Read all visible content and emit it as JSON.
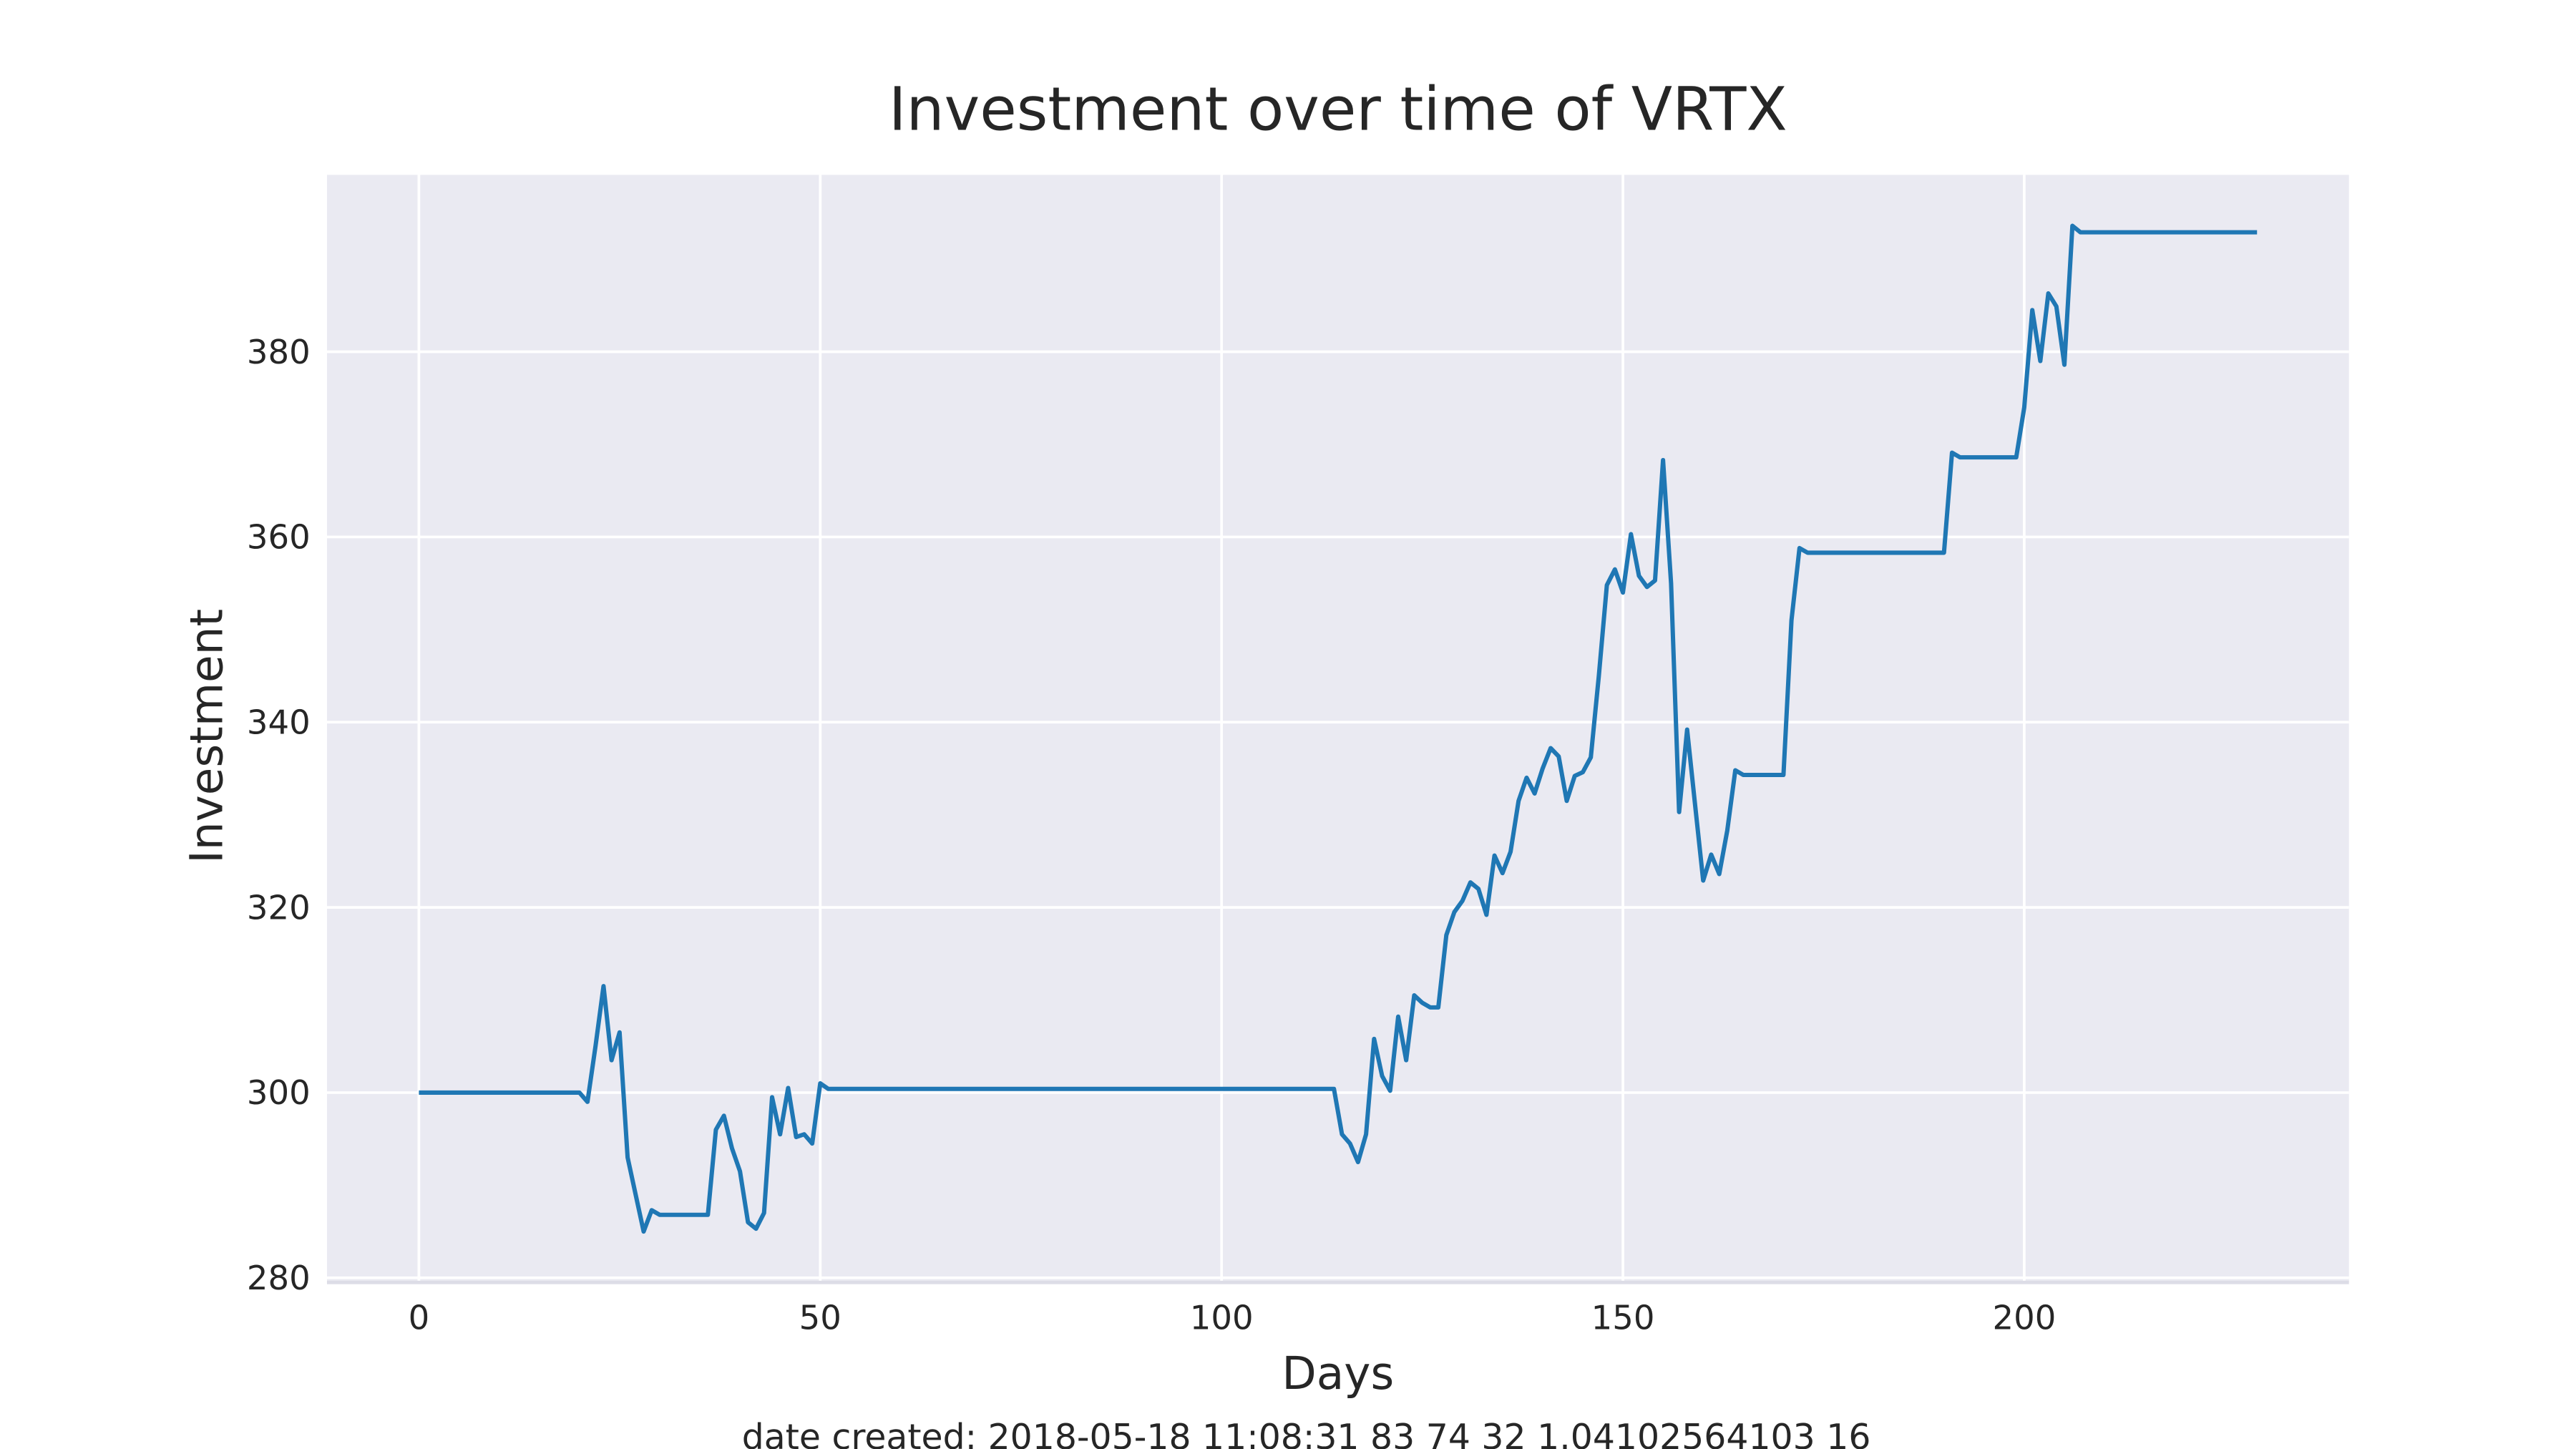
{
  "chart_data": {
    "type": "line",
    "title": "Investment over time of VRTX",
    "xlabel": "Days",
    "ylabel": "Investment",
    "footnote": "date created: 2018-05-18 11:08:31 83 74 32 1.04102564103 16",
    "x": [
      0,
      20,
      21,
      22,
      23,
      24,
      25,
      26,
      27,
      28,
      29,
      30,
      36,
      37,
      38,
      39,
      40,
      41,
      42,
      43,
      44,
      45,
      46,
      47,
      48,
      49,
      50,
      51,
      114,
      115,
      116,
      117,
      118,
      119,
      120,
      121,
      122,
      123,
      124,
      125,
      126,
      127,
      128,
      129,
      130,
      131,
      132,
      133,
      134,
      135,
      136,
      137,
      138,
      139,
      140,
      141,
      142,
      143,
      144,
      145,
      146,
      147,
      148,
      149,
      150,
      151,
      152,
      153,
      154,
      155,
      156,
      157,
      158,
      159,
      160,
      161,
      162,
      163,
      164,
      165,
      170,
      171,
      172,
      173,
      190,
      191,
      192,
      199,
      200,
      201,
      202,
      203,
      204,
      205,
      206,
      207,
      229
    ],
    "series": [
      {
        "name": "Investment",
        "color": "#1f77b4",
        "values": [
          300,
          300,
          299,
          305,
          311.5,
          303.5,
          306.5,
          293,
          289,
          285,
          287.3,
          286.8,
          286.8,
          296,
          297.5,
          294,
          291.5,
          286,
          285.3,
          287,
          299.5,
          295.5,
          300.5,
          295.2,
          295.5,
          294.5,
          301,
          300.4,
          300.4,
          295.5,
          294.5,
          292.5,
          295.5,
          305.8,
          301.8,
          300.2,
          308.2,
          303.5,
          310.5,
          309.7,
          309.2,
          309.2,
          317,
          319.5,
          320.7,
          322.7,
          322,
          319.2,
          325.6,
          323.7,
          326,
          331.5,
          334,
          332.3,
          335,
          337.2,
          336.3,
          331.5,
          334.2,
          334.6,
          336.2,
          345,
          354.8,
          356.5,
          354,
          360.3,
          355.8,
          354.6,
          355.3,
          368.3,
          355,
          330.3,
          339.2,
          331,
          322.9,
          325.7,
          323.6,
          328.3,
          334.8,
          334.3,
          334.3,
          351,
          358.8,
          358.3,
          358.3,
          369.1,
          368.6,
          368.6,
          374,
          384.5,
          379,
          386.3,
          384.9,
          378.6,
          393.6,
          392.9,
          392.9
        ]
      }
    ],
    "xlim": [
      -11.45,
      240.45
    ],
    "ylim": [
      279.5,
      399.1
    ],
    "xticks": [
      0,
      50,
      100,
      150,
      200
    ],
    "yticks": [
      280,
      300,
      320,
      340,
      360,
      380
    ],
    "grid": true
  }
}
